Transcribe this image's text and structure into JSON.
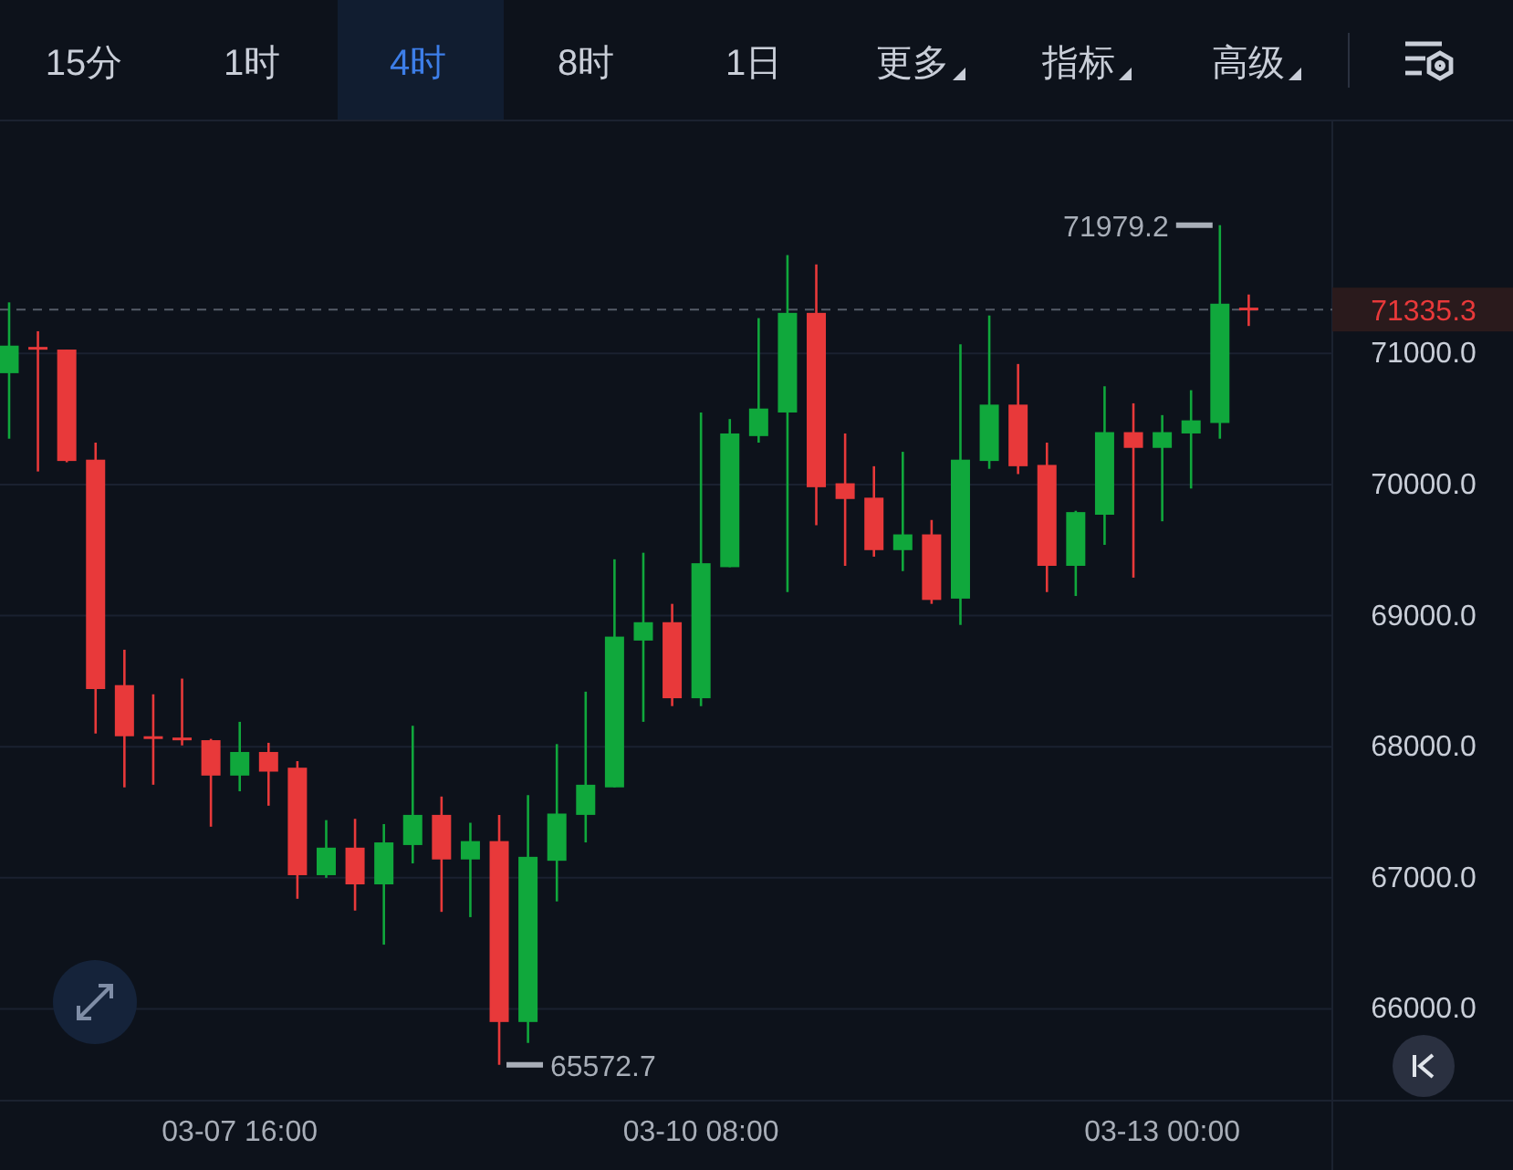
{
  "chart_data": {
    "type": "candlestick",
    "categories": [
      null,
      null,
      null,
      null,
      null,
      null,
      null,
      null,
      "03-07 16:00",
      null,
      null,
      null,
      null,
      null,
      null,
      null,
      null,
      null,
      null,
      null,
      null,
      null,
      null,
      null,
      "03-10 08:00",
      null,
      null,
      null,
      null,
      null,
      null,
      null,
      null,
      null,
      null,
      null,
      null,
      null,
      null,
      null,
      "03-13 00:00",
      null,
      null,
      null
    ],
    "ohlc": [
      [
        70850,
        71390,
        70350,
        71060
      ],
      [
        71050,
        71170,
        70100,
        71030
      ],
      [
        71030,
        71030,
        70170,
        70180
      ],
      [
        70190,
        70320,
        68100,
        68440
      ],
      [
        68470,
        68740,
        67690,
        68080
      ],
      [
        68080,
        68400,
        67710,
        68070
      ],
      [
        68070,
        68520,
        68010,
        68060
      ],
      [
        68050,
        68060,
        67390,
        67780
      ],
      [
        67780,
        68190,
        67660,
        67960
      ],
      [
        67960,
        68030,
        67550,
        67810
      ],
      [
        67840,
        67890,
        66840,
        67020
      ],
      [
        67020,
        67440,
        67000,
        67230
      ],
      [
        67230,
        67450,
        66750,
        66950
      ],
      [
        66950,
        67410,
        66490,
        67270
      ],
      [
        67250,
        68160,
        67110,
        67480
      ],
      [
        67480,
        67620,
        66740,
        67140
      ],
      [
        67140,
        67420,
        66700,
        67280
      ],
      [
        67280,
        67480,
        65572.7,
        65900
      ],
      [
        65900,
        67630,
        65740,
        67160
      ],
      [
        67130,
        68020,
        66820,
        67490
      ],
      [
        67480,
        68420,
        67270,
        67710
      ],
      [
        67690,
        69430,
        67690,
        68840
      ],
      [
        68810,
        69480,
        68190,
        68950
      ],
      [
        68950,
        69090,
        68310,
        68370
      ],
      [
        68370,
        70550,
        68310,
        69400
      ],
      [
        69370,
        70500,
        69370,
        70390
      ],
      [
        70370,
        71270,
        70320,
        70580
      ],
      [
        70550,
        71750,
        69180,
        71310
      ],
      [
        71310,
        71680,
        69690,
        69980
      ],
      [
        70010,
        70390,
        69380,
        69890
      ],
      [
        69900,
        70140,
        69450,
        69500
      ],
      [
        69500,
        70250,
        69340,
        69620
      ],
      [
        69620,
        69730,
        69090,
        69120
      ],
      [
        69130,
        71070,
        68930,
        70190
      ],
      [
        70180,
        71290,
        70120,
        70610
      ],
      [
        70610,
        70920,
        70080,
        70140
      ],
      [
        70150,
        70320,
        69180,
        69380
      ],
      [
        69380,
        69800,
        69150,
        69790
      ],
      [
        69770,
        70750,
        69540,
        70400
      ],
      [
        70400,
        70620,
        69290,
        70280
      ],
      [
        70280,
        70530,
        69720,
        70400
      ],
      [
        70390,
        70720,
        69970,
        70490
      ],
      [
        70470,
        71979.2,
        70350,
        71380
      ],
      [
        71350,
        71450,
        71210,
        71335.3
      ]
    ],
    "colors": [
      "#10a83c",
      "#e8393a",
      "#e8393a",
      "#e8393a",
      "#e8393a",
      "#e8393a",
      "#e8393a",
      "#e8393a",
      "#10a83c",
      "#e8393a",
      "#e8393a",
      "#10a83c",
      "#e8393a",
      "#10a83c",
      "#10a83c",
      "#e8393a",
      "#10a83c",
      "#e8393a",
      "#10a83c",
      "#10a83c",
      "#10a83c",
      "#10a83c",
      "#10a83c",
      "#e8393a",
      "#10a83c",
      "#10a83c",
      "#10a83c",
      "#10a83c",
      "#e8393a",
      "#e8393a",
      "#e8393a",
      "#10a83c",
      "#e8393a",
      "#10a83c",
      "#10a83c",
      "#e8393a",
      "#e8393a",
      "#10a83c",
      "#10a83c",
      "#e8393a",
      "#10a83c",
      "#10a83c",
      "#10a83c",
      "#e8393a"
    ],
    "ylim": [
      65300,
      72750
    ],
    "yticks": [
      {
        "value": 66000,
        "label": "66000.0"
      },
      {
        "value": 67000,
        "label": "67000.0"
      },
      {
        "value": 68000,
        "label": "68000.0"
      },
      {
        "value": 69000,
        "label": "69000.0"
      },
      {
        "value": 70000,
        "label": "70000.0"
      },
      {
        "value": 71000,
        "label": "71000.0"
      }
    ],
    "grid": "y",
    "ref_lines": [
      {
        "axis": "y",
        "value": 71335.3,
        "label": "71335.3",
        "color": "#555c68",
        "line_style": "dashed"
      }
    ],
    "annotations": [
      "15分",
      "1时",
      "4时",
      "8时",
      "1日",
      "更多",
      "指标",
      "高级",
      "71979.2",
      "65572.7"
    ]
  }
}
